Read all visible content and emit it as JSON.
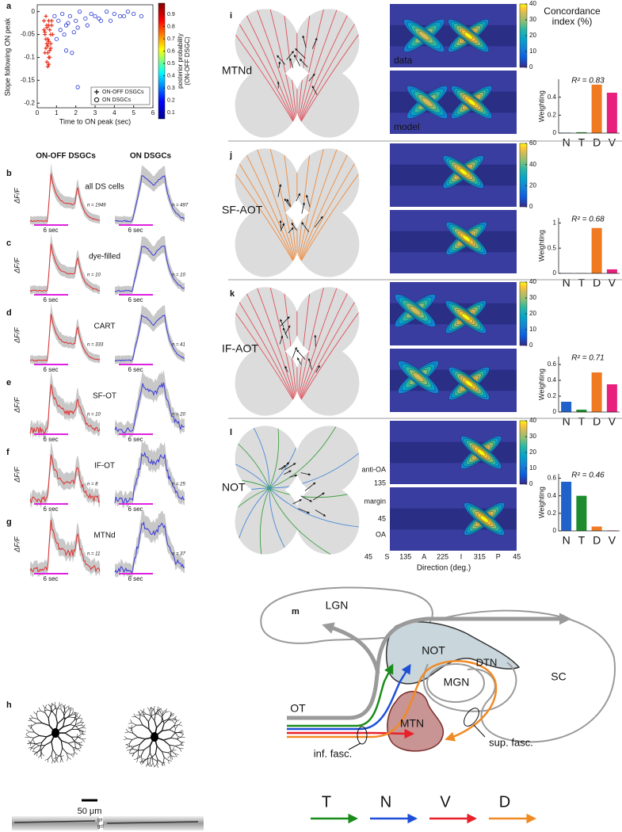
{
  "chart_data": [
    {
      "type": "scatter",
      "panel": "a",
      "xlabel": "Time to ON peak (sec)",
      "ylabel": "Slope following ON peak",
      "xlim": [
        0,
        6
      ],
      "xticks": [
        0,
        1,
        2,
        3,
        4,
        5,
        6
      ],
      "ylim": [
        -0.21,
        0.015
      ],
      "yticks": [
        -0.2,
        -0.15,
        -0.1,
        -0.05,
        0
      ],
      "legend": "bottom-right",
      "series": [
        {
          "name": "ON-OFF DSGCs",
          "marker": "plus",
          "color": "#e8321e",
          "x": [
            0.35,
            0.4,
            0.45,
            0.5,
            0.55,
            0.6,
            0.65,
            0.7,
            0.75,
            0.8,
            0.4,
            0.5,
            0.6,
            0.7,
            0.45,
            0.55,
            0.65,
            0.35,
            0.5,
            0.6,
            0.7,
            0.55,
            0.45,
            0.6,
            0.5,
            0.65,
            0.4,
            0.75,
            0.55,
            0.6
          ],
          "y": [
            -0.02,
            -0.05,
            -0.08,
            -0.03,
            -0.06,
            -0.1,
            -0.04,
            -0.07,
            -0.02,
            -0.05,
            -0.09,
            -0.11,
            -0.03,
            -0.08,
            -0.06,
            -0.12,
            -0.1,
            -0.04,
            -0.07,
            -0.02,
            -0.05,
            -0.09,
            -0.01,
            -0.065,
            -0.035,
            -0.085,
            -0.045,
            -0.03,
            -0.075,
            -0.115
          ]
        },
        {
          "name": "ON DSGCs",
          "marker": "circle",
          "color": "#1f2fd2",
          "x": [
            0.9,
            1.1,
            1.3,
            1.5,
            1.7,
            2.0,
            2.2,
            2.5,
            2.8,
            3.0,
            3.3,
            3.6,
            4.0,
            4.3,
            4.7,
            5.0,
            5.4,
            1.2,
            1.6,
            2.1,
            2.6,
            3.2,
            3.8,
            4.5,
            1.0,
            1.4,
            1.9,
            1.8,
            1.5,
            2.1
          ],
          "y": [
            -0.01,
            -0.02,
            -0.005,
            -0.03,
            -0.01,
            -0.02,
            0,
            -0.015,
            -0.005,
            -0.01,
            -0.02,
            0,
            -0.005,
            -0.01,
            0,
            -0.005,
            -0.01,
            -0.04,
            -0.025,
            -0.035,
            -0.03,
            -0.015,
            -0.02,
            -0.01,
            -0.06,
            -0.05,
            -0.045,
            -0.09,
            -0.085,
            -0.165
          ]
        }
      ],
      "colorbar": {
        "label": [
          "posterior probability",
          "(ON-OFF DSGC)"
        ],
        "lim": [
          0.05,
          0.99
        ],
        "ticks": [
          0.1,
          0.2,
          0.3,
          0.4,
          0.5,
          0.6,
          0.7,
          0.8,
          0.9
        ]
      }
    },
    {
      "type": "bar",
      "ylabel": "Weighting",
      "annotation": "R² = 0.83",
      "categories": [
        "N",
        "T",
        "D",
        "V"
      ],
      "colors": [
        "#2062c9",
        "#1c8c2c",
        "#f07a22",
        "#e81f7c"
      ],
      "values": [
        0.005,
        0.01,
        0.54,
        0.45
      ],
      "ylim": [
        0,
        0.6
      ],
      "yticks": [
        0,
        0.2,
        0.4
      ]
    },
    {
      "type": "bar",
      "ylabel": "Weighting",
      "annotation": "R² = 0.68",
      "categories": [
        "N",
        "T",
        "D",
        "V"
      ],
      "colors": [
        "#2062c9",
        "#1c8c2c",
        "#f07a22",
        "#e81f7c"
      ],
      "values": [
        0.005,
        0.005,
        0.9,
        0.08
      ],
      "ylim": [
        0,
        1.1
      ],
      "yticks": [
        0,
        0.5,
        1
      ]
    },
    {
      "type": "bar",
      "ylabel": "Weighting",
      "annotation": "R² = 0.71",
      "categories": [
        "N",
        "T",
        "D",
        "V"
      ],
      "colors": [
        "#2062c9",
        "#1c8c2c",
        "#f07a22",
        "#e81f7c"
      ],
      "values": [
        0.13,
        0.03,
        0.5,
        0.35
      ],
      "ylim": [
        0,
        0.7
      ],
      "yticks": [
        0,
        0.2,
        0.4,
        0.6
      ]
    },
    {
      "type": "bar",
      "ylabel": "Weighting",
      "annotation": "R² = 0.46",
      "categories": [
        "N",
        "T",
        "D",
        "V"
      ],
      "colors": [
        "#2062c9",
        "#1c8c2c",
        "#f07a22",
        "#e81f7c"
      ],
      "values": [
        0.56,
        0.4,
        0.05,
        0.005
      ],
      "ylim": [
        0,
        0.65
      ],
      "yticks": [
        0,
        0.2,
        0.4,
        0.6
      ]
    }
  ],
  "maps": {
    "colorbar_title": [
      "Concordance",
      "index (%)"
    ],
    "data_label": "data",
    "model_label": "model",
    "y_labels": [
      "anti-OA",
      "135",
      "margin",
      "45",
      "OA"
    ],
    "x_labels": [
      "45",
      "S",
      "135",
      "A",
      "225",
      "I",
      "315",
      "P",
      "45"
    ],
    "x_title": "Direction (deg.)",
    "panels": [
      {
        "label": "i",
        "region": "MTNd",
        "colorbar_lim": [
          0,
          40
        ],
        "colorbar_ticks": [
          0,
          10,
          20,
          30,
          40
        ]
      },
      {
        "label": "j",
        "region": "SF-AOT",
        "colorbar_lim": [
          0,
          60
        ],
        "colorbar_ticks": [
          0,
          20,
          40,
          60
        ]
      },
      {
        "label": "k",
        "region": "IF-AOT",
        "colorbar_lim": [
          0,
          40
        ],
        "colorbar_ticks": [
          0,
          10,
          20,
          30,
          40
        ]
      },
      {
        "label": "l",
        "region": "NOT",
        "colorbar_lim": [
          0,
          40
        ],
        "colorbar_ticks": [
          0,
          10,
          20,
          30,
          40
        ]
      }
    ]
  },
  "traces": {
    "col_headers": [
      "ON-OFF DSGCs",
      "ON DSGCs"
    ],
    "ylabel": "ΔF/F",
    "stim": "6 sec",
    "rows": [
      {
        "label": "b",
        "name": "all DS cells",
        "n": [
          "n = 1949",
          "n = 497"
        ]
      },
      {
        "label": "c",
        "name": "dye-filled",
        "n": [
          "n = 10",
          "n = 10"
        ]
      },
      {
        "label": "d",
        "name": "CART",
        "n": [
          "n = 333",
          "n = 41"
        ]
      },
      {
        "label": "e",
        "name": "SF-OT",
        "n": [
          "n = 10",
          "n = 20"
        ]
      },
      {
        "label": "f",
        "name": "IF-OT",
        "n": [
          "n = 8",
          "n = 25"
        ]
      },
      {
        "label": "g",
        "name": "MTNd",
        "n": [
          "n = 11",
          "n = 37"
        ]
      }
    ]
  },
  "images": {
    "label": "h",
    "scale": "50 μm",
    "layers": [
      "ipl",
      "gcl"
    ]
  },
  "diagram": {
    "label": "m",
    "nodes": [
      {
        "text": "LGN"
      },
      {
        "text": "NOT"
      },
      {
        "text": "DTN"
      },
      {
        "text": "SC"
      },
      {
        "text": "MGN"
      },
      {
        "text": "OT"
      },
      {
        "text": "MTN"
      },
      {
        "text": "sup. fasc."
      },
      {
        "text": "inf. fasc."
      }
    ],
    "legend": [
      {
        "name": "T",
        "color": "#1a8c1a"
      },
      {
        "name": "N",
        "color": "#1f4fd8"
      },
      {
        "name": "V",
        "color": "#e8202a"
      },
      {
        "name": "D",
        "color": "#f08a24"
      }
    ]
  }
}
